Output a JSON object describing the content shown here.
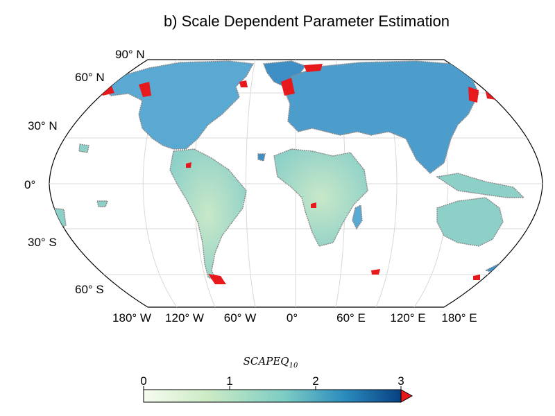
{
  "title": "b) Scale Dependent Parameter Estimation",
  "latitude_labels": [
    "90° N",
    "60° N",
    "30° N",
    "0°",
    "30° S",
    "60° S"
  ],
  "longitude_labels": [
    "180° W",
    "120° W",
    "60° W",
    "0°",
    "60° E",
    "120° E",
    "180° E"
  ],
  "colorbar": {
    "title": "SCAPEQ",
    "title_subscript": "10",
    "ticks": [
      "0",
      "1",
      "2",
      "3"
    ],
    "range": [
      0,
      3
    ],
    "extend": "max",
    "colors": [
      "#f7fcf0",
      "#ccebc5",
      "#7bccc4",
      "#2b8cbe",
      "#084081"
    ],
    "over_color": "#e8191c"
  },
  "colors": {
    "land_low": "#bfe3c4",
    "land_mid": "#7cc8c6",
    "land_high": "#3d8fc6",
    "land_edge": "#8a8a8a",
    "over_threshold": "#e8191c",
    "graticule": "#d8d8d8"
  }
}
